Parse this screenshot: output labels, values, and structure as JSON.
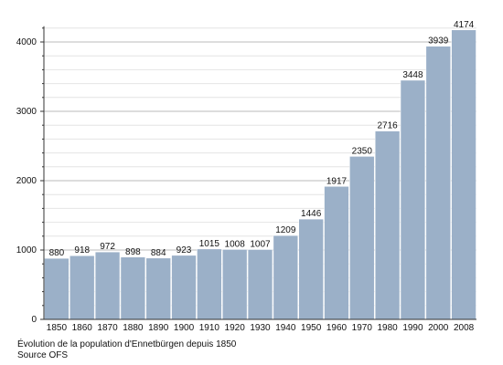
{
  "chart_data": {
    "type": "bar",
    "categories": [
      "1850",
      "1860",
      "1870",
      "1880",
      "1890",
      "1900",
      "1910",
      "1920",
      "1930",
      "1940",
      "1950",
      "1960",
      "1970",
      "1980",
      "1990",
      "2000",
      "2008"
    ],
    "values": [
      880,
      918,
      972,
      898,
      884,
      923,
      1015,
      1008,
      1007,
      1209,
      1446,
      1917,
      2350,
      2716,
      3448,
      3939,
      4174
    ],
    "data_labels": [
      "880",
      "918",
      "972",
      "898",
      "884",
      "923",
      "1015",
      "1008",
      "1007",
      "1209",
      "1446",
      "1917",
      "2350",
      "2716",
      "3448",
      "3939",
      "4174"
    ],
    "yticks": [
      0,
      1000,
      2000,
      3000,
      4000
    ],
    "ytick_labels": [
      "0",
      "1000",
      "2000",
      "3000",
      "4000"
    ],
    "ylim": [
      0,
      4200
    ],
    "grid": true,
    "bar_color": "#9bb0c8",
    "bar_edge_color": "#ffffff",
    "grid_color": "#cccccc",
    "title": "",
    "xlabel": "",
    "ylabel": ""
  },
  "caption": {
    "line1": "Évolution de la population d'Ennetbürgen depuis 1850",
    "line2": "Source OFS"
  }
}
